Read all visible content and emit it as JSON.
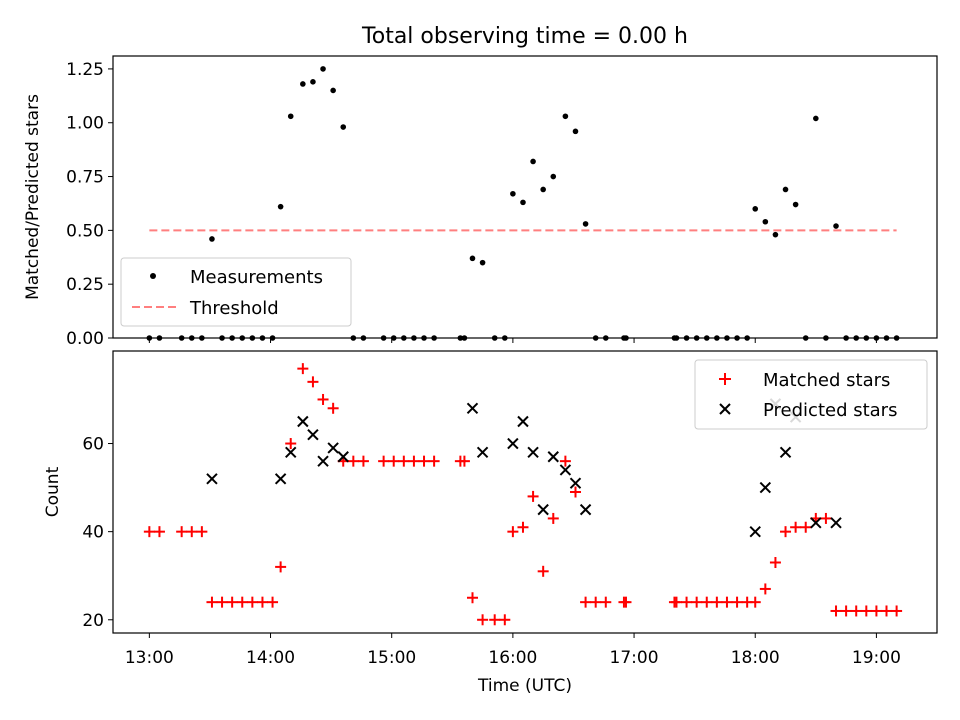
{
  "chart_data": [
    {
      "type": "scatter",
      "title": "Total observing time = 0.00 h",
      "xlabel": "",
      "ylabel": "Matched/Predicted stars",
      "xlim": [
        "12:42",
        "19:30"
      ],
      "ylim": [
        0,
        1.31
      ],
      "yticks": [
        "0.00",
        "0.25",
        "0.50",
        "0.75",
        "1.00",
        "1.25"
      ],
      "xticks": [
        "13:00",
        "14:00",
        "15:00",
        "16:00",
        "17:00",
        "18:00",
        "19:00"
      ],
      "grid": false,
      "legend_position": "lower-left",
      "series": [
        {
          "name": "Measurements",
          "marker": "dot",
          "color": "#000000",
          "points": [
            [
              "13:00",
              0
            ],
            [
              "13:05",
              0
            ],
            [
              "13:16",
              0
            ],
            [
              "13:21",
              0
            ],
            [
              "13:26",
              0
            ],
            [
              "13:31",
              0.46
            ],
            [
              "13:36",
              0
            ],
            [
              "13:41",
              0
            ],
            [
              "13:46",
              0
            ],
            [
              "13:51",
              0
            ],
            [
              "13:56",
              0
            ],
            [
              "14:01",
              0
            ],
            [
              "14:05",
              0.61
            ],
            [
              "14:10",
              1.03
            ],
            [
              "14:16",
              1.18
            ],
            [
              "14:21",
              1.19
            ],
            [
              "14:26",
              1.25
            ],
            [
              "14:31",
              1.15
            ],
            [
              "14:36",
              0.98
            ],
            [
              "14:41",
              0
            ],
            [
              "14:46",
              0
            ],
            [
              "14:56",
              0
            ],
            [
              "15:01",
              0
            ],
            [
              "15:06",
              0
            ],
            [
              "15:11",
              0
            ],
            [
              "15:16",
              0
            ],
            [
              "15:21",
              0
            ],
            [
              "15:34",
              0
            ],
            [
              "15:36",
              0
            ],
            [
              "15:40",
              0.37
            ],
            [
              "15:45",
              0.35
            ],
            [
              "15:51",
              0
            ],
            [
              "15:56",
              0
            ],
            [
              "16:00",
              0.67
            ],
            [
              "16:05",
              0.63
            ],
            [
              "16:10",
              0.82
            ],
            [
              "16:15",
              0.69
            ],
            [
              "16:20",
              0.75
            ],
            [
              "16:26",
              1.03
            ],
            [
              "16:31",
              0.96
            ],
            [
              "16:36",
              0.53
            ],
            [
              "16:41",
              0
            ],
            [
              "16:46",
              0
            ],
            [
              "16:55",
              0
            ],
            [
              "16:56",
              0
            ],
            [
              "17:20",
              0
            ],
            [
              "17:21",
              0
            ],
            [
              "17:26",
              0
            ],
            [
              "17:31",
              0
            ],
            [
              "17:36",
              0
            ],
            [
              "17:41",
              0
            ],
            [
              "17:46",
              0
            ],
            [
              "17:51",
              0
            ],
            [
              "17:56",
              0
            ],
            [
              "18:00",
              0.6
            ],
            [
              "18:05",
              0.54
            ],
            [
              "18:10",
              0.48
            ],
            [
              "18:15",
              0.69
            ],
            [
              "18:20",
              0.62
            ],
            [
              "18:25",
              0
            ],
            [
              "18:30",
              1.02
            ],
            [
              "18:35",
              0
            ],
            [
              "18:40",
              0.52
            ],
            [
              "18:45",
              0
            ],
            [
              "18:50",
              0
            ],
            [
              "18:55",
              0
            ],
            [
              "19:00",
              0
            ],
            [
              "19:05",
              0
            ],
            [
              "19:10",
              0
            ]
          ]
        },
        {
          "name": "Threshold",
          "style": "dashed-line",
          "color": "#ff7f7f",
          "points": [
            [
              "13:00",
              0.5
            ],
            [
              "19:10",
              0.5
            ]
          ]
        }
      ]
    },
    {
      "type": "scatter",
      "title": "",
      "xlabel": "Time (UTC)",
      "ylabel": "Count",
      "xlim": [
        "12:42",
        "19:30"
      ],
      "ylim": [
        17,
        81
      ],
      "yticks": [
        "20",
        "40",
        "60"
      ],
      "xticks": [
        "13:00",
        "14:00",
        "15:00",
        "16:00",
        "17:00",
        "18:00",
        "19:00"
      ],
      "grid": false,
      "legend_position": "top-right",
      "series": [
        {
          "name": "Matched stars",
          "marker": "plus",
          "color": "#ff0000",
          "points": [
            [
              "13:00",
              40
            ],
            [
              "13:05",
              40
            ],
            [
              "13:16",
              40
            ],
            [
              "13:21",
              40
            ],
            [
              "13:26",
              40
            ],
            [
              "13:31",
              24
            ],
            [
              "13:36",
              24
            ],
            [
              "13:41",
              24
            ],
            [
              "13:46",
              24
            ],
            [
              "13:51",
              24
            ],
            [
              "13:56",
              24
            ],
            [
              "14:01",
              24
            ],
            [
              "14:05",
              32
            ],
            [
              "14:10",
              60
            ],
            [
              "14:16",
              77
            ],
            [
              "14:21",
              74
            ],
            [
              "14:26",
              70
            ],
            [
              "14:31",
              68
            ],
            [
              "14:36",
              56
            ],
            [
              "14:41",
              56
            ],
            [
              "14:46",
              56
            ],
            [
              "14:56",
              56
            ],
            [
              "15:01",
              56
            ],
            [
              "15:06",
              56
            ],
            [
              "15:11",
              56
            ],
            [
              "15:16",
              56
            ],
            [
              "15:21",
              56
            ],
            [
              "15:34",
              56
            ],
            [
              "15:36",
              56
            ],
            [
              "15:40",
              25
            ],
            [
              "15:45",
              20
            ],
            [
              "15:51",
              20
            ],
            [
              "15:56",
              20
            ],
            [
              "16:00",
              40
            ],
            [
              "16:05",
              41
            ],
            [
              "16:10",
              48
            ],
            [
              "16:15",
              31
            ],
            [
              "16:20",
              43
            ],
            [
              "16:26",
              56
            ],
            [
              "16:31",
              49
            ],
            [
              "16:36",
              24
            ],
            [
              "16:41",
              24
            ],
            [
              "16:46",
              24
            ],
            [
              "16:55",
              24
            ],
            [
              "16:56",
              24
            ],
            [
              "17:20",
              24
            ],
            [
              "17:21",
              24
            ],
            [
              "17:26",
              24
            ],
            [
              "17:31",
              24
            ],
            [
              "17:36",
              24
            ],
            [
              "17:41",
              24
            ],
            [
              "17:46",
              24
            ],
            [
              "17:51",
              24
            ],
            [
              "17:56",
              24
            ],
            [
              "18:00",
              24
            ],
            [
              "18:05",
              27
            ],
            [
              "18:10",
              33
            ],
            [
              "18:15",
              40
            ],
            [
              "18:20",
              41
            ],
            [
              "18:25",
              41
            ],
            [
              "18:30",
              43
            ],
            [
              "18:35",
              43
            ],
            [
              "18:40",
              22
            ],
            [
              "18:45",
              22
            ],
            [
              "18:50",
              22
            ],
            [
              "18:55",
              22
            ],
            [
              "19:00",
              22
            ],
            [
              "19:05",
              22
            ],
            [
              "19:10",
              22
            ]
          ]
        },
        {
          "name": "Predicted stars",
          "marker": "x",
          "color": "#000000",
          "points": [
            [
              "13:31",
              52
            ],
            [
              "14:05",
              52
            ],
            [
              "14:10",
              58
            ],
            [
              "14:16",
              65
            ],
            [
              "14:21",
              62
            ],
            [
              "14:26",
              56
            ],
            [
              "14:31",
              59
            ],
            [
              "14:36",
              57
            ],
            [
              "15:40",
              68
            ],
            [
              "15:45",
              58
            ],
            [
              "16:00",
              60
            ],
            [
              "16:05",
              65
            ],
            [
              "16:10",
              58
            ],
            [
              "16:15",
              45
            ],
            [
              "16:20",
              57
            ],
            [
              "16:26",
              54
            ],
            [
              "16:31",
              51
            ],
            [
              "16:36",
              45
            ],
            [
              "18:00",
              40
            ],
            [
              "18:05",
              50
            ],
            [
              "18:10",
              69
            ],
            [
              "18:15",
              58
            ],
            [
              "18:20",
              66
            ],
            [
              "18:30",
              42
            ],
            [
              "18:40",
              42
            ]
          ]
        }
      ]
    }
  ]
}
